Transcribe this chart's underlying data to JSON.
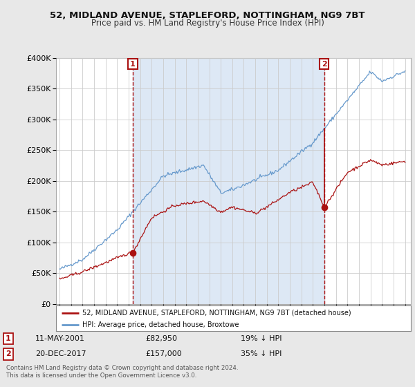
{
  "title": "52, MIDLAND AVENUE, STAPLEFORD, NOTTINGHAM, NG9 7BT",
  "subtitle": "Price paid vs. HM Land Registry's House Price Index (HPI)",
  "bg_color": "#e8e8e8",
  "plot_bg_color": "#ffffff",
  "grid_color": "#cccccc",
  "hpi_color": "#6699cc",
  "price_color": "#aa1111",
  "shade_color": "#dde8f5",
  "ylim": [
    0,
    400000
  ],
  "yticks": [
    0,
    50000,
    100000,
    150000,
    200000,
    250000,
    300000,
    350000,
    400000
  ],
  "sale1": {
    "date_x": 2001.36,
    "price": 82950,
    "label": "1",
    "hpi_pct": "19% ↓ HPI",
    "date_str": "11-MAY-2001",
    "price_str": "£82,950"
  },
  "sale2": {
    "date_x": 2017.97,
    "price": 157000,
    "label": "2",
    "hpi_pct": "35% ↓ HPI",
    "date_str": "20-DEC-2017",
    "price_str": "£157,000"
  },
  "legend_line1": "52, MIDLAND AVENUE, STAPLEFORD, NOTTINGHAM, NG9 7BT (detached house)",
  "legend_line2": "HPI: Average price, detached house, Broxtowe",
  "footer": "Contains HM Land Registry data © Crown copyright and database right 2024.\nThis data is licensed under the Open Government Licence v3.0.",
  "xlim_start": 1994.7,
  "xlim_end": 2025.5
}
